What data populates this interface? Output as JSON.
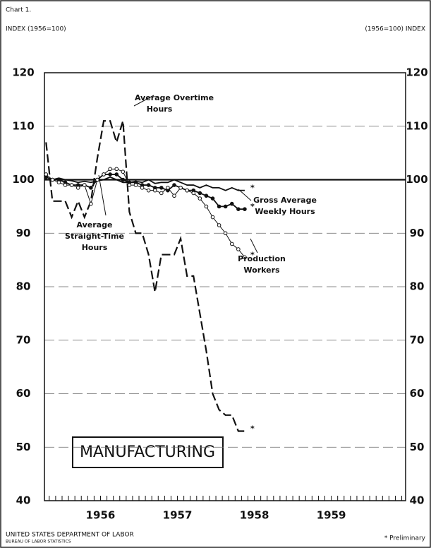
{
  "chart_data": {
    "type": "line",
    "chart_label": "Chart 1.",
    "y_label_left": "INDEX (1956=100)",
    "y_label_right": "(1956=100) INDEX",
    "title": "MANUFACTURING",
    "footer_line1": "UNITED STATES DEPARTMENT OF LABOR",
    "footer_line2": "BUREAU OF LABOR STATISTICS",
    "footnote": "* Preliminary",
    "x": [
      -3,
      -2,
      -1,
      0,
      1,
      2,
      3,
      4,
      5,
      6,
      7,
      8,
      9,
      10,
      11,
      12,
      13,
      14,
      15,
      16,
      17,
      18,
      19,
      20,
      21,
      22,
      23,
      24,
      25,
      26,
      27,
      28
    ],
    "xlim": [
      -3.25,
      53.1
    ],
    "xticks": [
      {
        "value": 5.5,
        "label": "1956"
      },
      {
        "value": 17.5,
        "label": "1957"
      },
      {
        "value": 29.5,
        "label": "1958"
      },
      {
        "value": 41.5,
        "label": "1959"
      }
    ],
    "ylim": [
      40,
      120
    ],
    "yticks": [
      40,
      50,
      60,
      70,
      80,
      90,
      100,
      110,
      120
    ],
    "y2lim": [
      40,
      120
    ],
    "y2ticks": [
      40,
      50,
      60,
      70,
      80,
      90,
      100,
      110,
      120
    ],
    "grid": true,
    "hline": 100,
    "series": [
      {
        "name": [
          "Average Overtime",
          "Hours"
        ],
        "color": "#111",
        "style": "dashed",
        "marker": "none",
        "end_mark": "*",
        "values": [
          107,
          96,
          96,
          96,
          93,
          96,
          93,
          96,
          104,
          111,
          111,
          107,
          111,
          94,
          90,
          90,
          86,
          79,
          86,
          86,
          86,
          89,
          82,
          82,
          75,
          68,
          60,
          57,
          56,
          56,
          53,
          53
        ]
      },
      {
        "name": [
          "Average",
          "Straight-Time",
          "Hours"
        ],
        "color": "#111",
        "style": "solid",
        "marker": "none",
        "end_mark": "*",
        "values": [
          100,
          100,
          100.3,
          100,
          99.8,
          99.5,
          99.7,
          99.5,
          99.8,
          100,
          100.5,
          100,
          99.5,
          99.5,
          99.7,
          99.5,
          100,
          99.3,
          99.5,
          99.5,
          100,
          99.5,
          99,
          99,
          98.5,
          99,
          98.5,
          98.5,
          98,
          98.5,
          98,
          98
        ]
      },
      {
        "name": [
          "Gross Average",
          "Weekly Hours"
        ],
        "color": "#111",
        "style": "solid",
        "marker": "filled",
        "end_mark": "*",
        "values": [
          100.5,
          100,
          100,
          99.5,
          99,
          99,
          99,
          98.5,
          100,
          101,
          101,
          101,
          100,
          99.5,
          99.5,
          99,
          99,
          98.5,
          98.5,
          98,
          99,
          98.5,
          98,
          98,
          97.5,
          97,
          96.5,
          95,
          95,
          95.5,
          94.5,
          94.5
        ]
      },
      {
        "name": [
          "Production",
          "Workers"
        ],
        "color": "#111",
        "style": "thin",
        "marker": "open",
        "end_mark": "*",
        "values": [
          101,
          100,
          99.5,
          99,
          99,
          98.5,
          99,
          95.5,
          100,
          101,
          102,
          102,
          101.5,
          99,
          99,
          98.5,
          98,
          98,
          97.5,
          98.5,
          97,
          98.5,
          98,
          97.5,
          96.5,
          95,
          93,
          91.5,
          90,
          88,
          87,
          85.5
        ]
      }
    ]
  }
}
